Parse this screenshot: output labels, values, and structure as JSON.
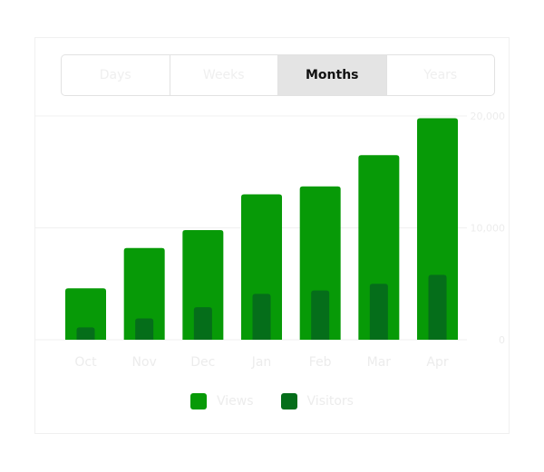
{
  "tabs": [
    {
      "label": "Days",
      "active": false
    },
    {
      "label": "Weeks",
      "active": false
    },
    {
      "label": "Months",
      "active": true
    },
    {
      "label": "Years",
      "active": false
    }
  ],
  "colors": {
    "views": "#079a07",
    "visitors": "#056e1a"
  },
  "chart_data": {
    "type": "bar",
    "categories": [
      "Oct",
      "Nov",
      "Dec",
      "Jan",
      "Feb",
      "Mar",
      "Apr"
    ],
    "series": [
      {
        "name": "Views",
        "values": [
          4600,
          8200,
          9800,
          13000,
          13700,
          16500,
          19800
        ]
      },
      {
        "name": "Visitors",
        "values": [
          1100,
          1900,
          2900,
          4100,
          4400,
          5000,
          5800
        ]
      }
    ],
    "y_ticks": [
      "20,000",
      "10,000",
      "0"
    ],
    "y_tick_values": [
      20000,
      10000,
      0
    ],
    "ylim": [
      0,
      20000
    ],
    "legend_position": "bottom",
    "grid": true
  }
}
